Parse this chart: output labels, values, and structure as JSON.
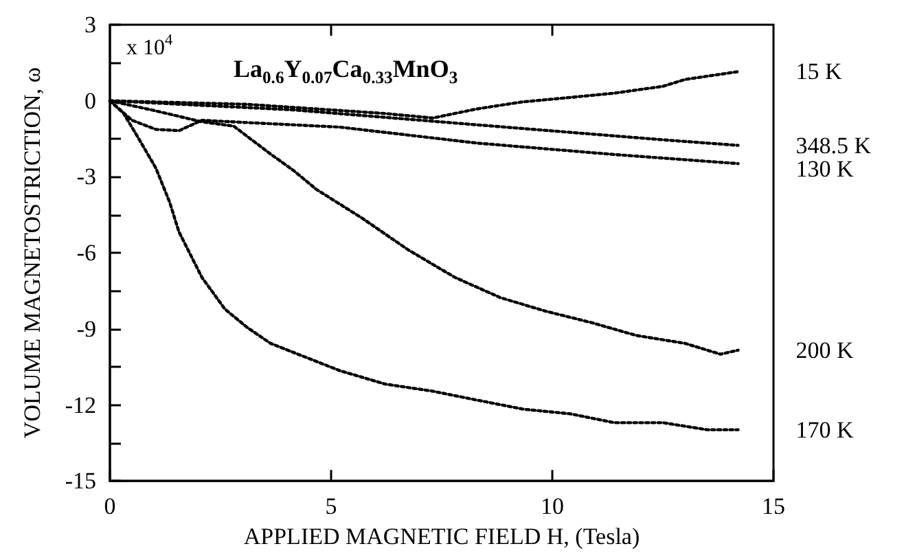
{
  "chart_data": {
    "type": "line",
    "title": "La$_{0.6}$Y$_{0.07}$Ca$_{0.33}$MnO$_{3}$",
    "xlabel": "APPLIED MAGNETIC FIELD H, (Tesla)",
    "ylabel": "VOLUME MAGNETOSTRICTION, ω",
    "annotations": [
      "x 10$^{4}$"
    ],
    "xlim": [
      0,
      15
    ],
    "xticks": [
      0,
      5,
      10,
      15
    ],
    "ylim": [
      -15,
      3
    ],
    "yticks": [
      3,
      {
        "value": 1.5,
        "label": null
      },
      0,
      {
        "value": -1.5,
        "label": null
      },
      -3,
      {
        "value": -4.5,
        "label": null
      },
      -6,
      {
        "value": -7.5,
        "label": null
      },
      -9,
      {
        "value": -10.5,
        "label": null
      },
      -12,
      {
        "value": -13.5,
        "label": null
      },
      -15
    ],
    "grid": false,
    "legend": false,
    "marker": "none",
    "line_style": "dotted",
    "series": [
      {
        "name": "15 K",
        "color": "#000000",
        "x": [
          0,
          3.1,
          6.2,
          7.3,
          8.3,
          9.3,
          10.4,
          11.4,
          12.5,
          13,
          14.2
        ],
        "values": [
          0,
          -0.14,
          -0.5,
          -0.68,
          -0.32,
          -0.05,
          0.13,
          0.3,
          0.57,
          0.84,
          1.15
        ]
      },
      {
        "name": "348.5 K",
        "color": "#000000",
        "x": [
          0,
          4.15,
          8.3,
          12.5,
          14.2
        ],
        "values": [
          0,
          -0.36,
          -0.95,
          -1.54,
          -1.76
        ]
      },
      {
        "name": "130 K",
        "color": "#000000",
        "x": [
          0,
          0.5,
          1.04,
          1.56,
          2.08,
          3.1,
          5.2,
          8.3,
          11.4,
          13.5,
          14.2
        ],
        "values": [
          0,
          -0.77,
          -1.13,
          -1.18,
          -0.77,
          -0.86,
          -1.04,
          -1.67,
          -2.12,
          -2.39,
          -2.48
        ]
      },
      {
        "name": "200 K",
        "color": "#000000",
        "x": [
          0,
          1.04,
          2.08,
          2.8,
          3.1,
          3.63,
          4.15,
          4.67,
          5.7,
          6.75,
          7.8,
          8.83,
          9.87,
          10.9,
          11.9,
          13,
          13.8,
          14.2
        ],
        "values": [
          0,
          -0.4,
          -0.83,
          -1.0,
          -1.4,
          -2.1,
          -2.75,
          -3.5,
          -4.63,
          -5.89,
          -6.97,
          -7.77,
          -8.31,
          -8.76,
          -9.26,
          -9.57,
          -10.0,
          -9.84
        ]
      },
      {
        "name": "170 K",
        "color": "#000000",
        "x": [
          0,
          0.31,
          0.62,
          1.04,
          1.35,
          1.56,
          2.08,
          2.6,
          3.1,
          3.63,
          4.15,
          5.2,
          6.23,
          7.27,
          8.3,
          9.35,
          10.4,
          11.4,
          12.5,
          13.5,
          14.2
        ],
        "values": [
          0,
          -0.5,
          -1.4,
          -2.66,
          -4.0,
          -5.17,
          -6.97,
          -8.22,
          -8.94,
          -9.57,
          -9.93,
          -10.65,
          -11.18,
          -11.45,
          -11.81,
          -12.17,
          -12.35,
          -12.7,
          -12.7,
          -12.98,
          -12.98
        ]
      }
    ]
  }
}
